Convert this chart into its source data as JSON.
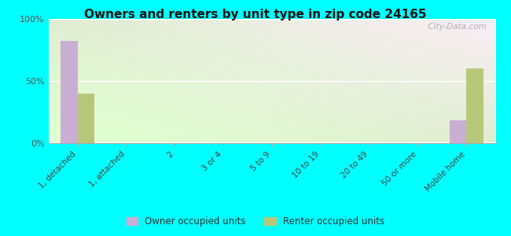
{
  "title": "Owners and renters by unit type in zip code 24165",
  "categories": [
    "1, detached",
    "1, attached",
    "2",
    "3 or 4",
    "5 to 9",
    "10 to 19",
    "20 to 49",
    "50 or more",
    "Mobile home"
  ],
  "owner_values": [
    82,
    0,
    0,
    0,
    0,
    0,
    0,
    0,
    18
  ],
  "renter_values": [
    40,
    0,
    0,
    0,
    0,
    0,
    0,
    0,
    60
  ],
  "owner_color": "#c9afd4",
  "renter_color": "#b8c87a",
  "ylim": [
    0,
    100
  ],
  "yticks": [
    0,
    50,
    100
  ],
  "ytick_labels": [
    "0%",
    "50%",
    "100%"
  ],
  "outer_bg": "#00ffff",
  "watermark": "  City-Data.com",
  "bar_width": 0.35,
  "legend_owner": "Owner occupied units",
  "legend_renter": "Renter occupied units",
  "grad_top_left": "#d4edc0",
  "grad_top_right": "#f0faf0",
  "grad_bottom_left": "#c8e8b0",
  "grad_bottom_right": "#eaf8ea"
}
